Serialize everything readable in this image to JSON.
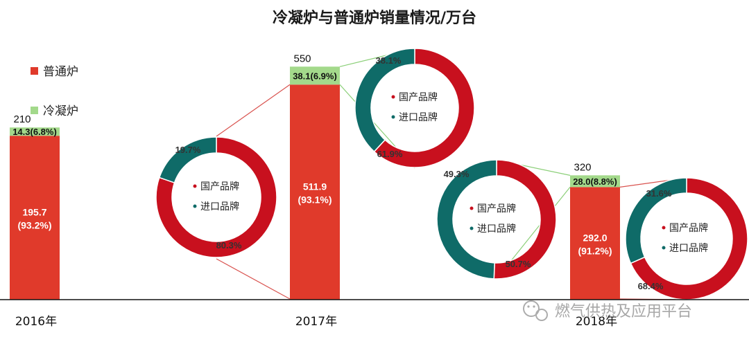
{
  "colors": {
    "normal": "#e03a2b",
    "condensing": "#a3d98b",
    "domestic": "#c8101e",
    "imported": "#0f6b68",
    "connector": "#d9534f",
    "connector_green": "#8bcf78"
  },
  "chart_data": {
    "type": "bar",
    "title": "冷凝炉与普通炉销量情况/万台",
    "legend": [
      "普通炉",
      "冷凝炉"
    ],
    "categories": [
      "2016年",
      "2017年",
      "2018年"
    ],
    "totals": [
      "210",
      "550",
      "320"
    ],
    "ylim": [
      0,
      550
    ],
    "series": [
      {
        "name": "普通炉",
        "values": [
          195.7,
          511.9,
          292.0
        ],
        "labels": [
          "195.7",
          "511.9",
          "292.0"
        ],
        "shares": [
          "(93.2%)",
          "(93.1%)",
          "(91.2%)"
        ]
      },
      {
        "name": "冷凝炉",
        "values": [
          14.3,
          38.1,
          28.0
        ],
        "labels": [
          "14.3(6.8%)",
          "38.1(6.9%)",
          "28.0(8.8%)"
        ]
      }
    ],
    "donuts": [
      {
        "of": "普通炉 2017",
        "labels": [
          "国产品牌",
          "进口品牌"
        ],
        "values": [
          80.3,
          19.7
        ],
        "value_labels": [
          "80.3%",
          "19.7%"
        ]
      },
      {
        "of": "冷凝炉 2017",
        "labels": [
          "国产品牌",
          "进口品牌"
        ],
        "values": [
          61.9,
          38.1
        ],
        "value_labels": [
          "61.9%",
          "38.1%"
        ]
      },
      {
        "of": "冷凝炉 2018",
        "labels": [
          "国产品牌",
          "进口品牌"
        ],
        "values": [
          50.7,
          49.3
        ],
        "value_labels": [
          "50.7%",
          "49.3%"
        ]
      },
      {
        "of": "普通炉 2018",
        "labels": [
          "国产品牌",
          "进口品牌"
        ],
        "values": [
          68.4,
          31.6
        ],
        "value_labels": [
          "68.4%",
          "31.6%"
        ]
      }
    ]
  },
  "watermark": "燃气供热及应用平台"
}
